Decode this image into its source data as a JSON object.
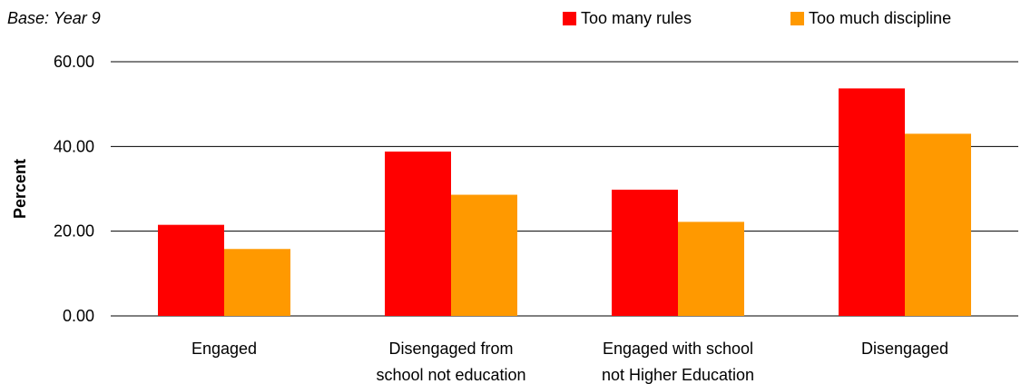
{
  "chart_data": {
    "type": "bar",
    "subtitle": "Base: Year 9",
    "ylabel": "Percent",
    "xlabel": "",
    "ylim": [
      0,
      60
    ],
    "yticks": [
      "0.00",
      "20.00",
      "40.00",
      "60.00"
    ],
    "grid": true,
    "legend_position": "top-right",
    "categories": [
      [
        "Engaged"
      ],
      [
        "Disengaged from",
        "school not education"
      ],
      [
        "Engaged with school",
        "not Higher Education"
      ],
      [
        "Disengaged"
      ]
    ],
    "series": [
      {
        "name": "Too many rules",
        "color": "#ff0000",
        "values": [
          21.5,
          38.8,
          29.8,
          53.7
        ]
      },
      {
        "name": "Too much discipline",
        "color": "#ff9900",
        "values": [
          15.8,
          28.6,
          22.2,
          43.0
        ]
      }
    ]
  }
}
